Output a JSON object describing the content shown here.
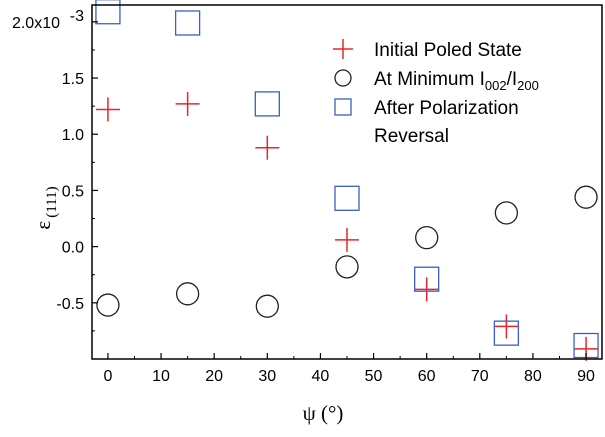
{
  "chart_data": {
    "type": "scatter",
    "title": "",
    "xlabel": "ψ (°)",
    "ylabel_symbol": "ε",
    "ylabel_subscript": "(111)",
    "xlim": [
      -3,
      93
    ],
    "ylim": [
      -0.001,
      0.00215
    ],
    "x_ticks": [
      0,
      10,
      20,
      30,
      40,
      50,
      60,
      70,
      80,
      90
    ],
    "y_ticks": [
      {
        "value": 0.002,
        "label": "2.0x10",
        "exponent": "-3"
      },
      {
        "value": 0.0015,
        "label": "1.5"
      },
      {
        "value": 0.001,
        "label": "1.0"
      },
      {
        "value": 0.0005,
        "label": "0.5"
      },
      {
        "value": 0.0,
        "label": "0.0"
      },
      {
        "value": -0.0005,
        "label": "-0.5"
      }
    ],
    "grid": false,
    "legend_position": "top-right",
    "series": [
      {
        "name": "Initial Poled State",
        "marker": "plus",
        "color": "#e8262a",
        "x": [
          0,
          15,
          30,
          45,
          60,
          75,
          90
        ],
        "y": [
          0.00122,
          0.00127,
          0.00088,
          6e-05,
          -0.00038,
          -0.00071,
          -0.00091
        ]
      },
      {
        "name": "At Minimum I002/I200",
        "marker": "circle",
        "color": "#231f20",
        "x": [
          0,
          15,
          30,
          45,
          60,
          75,
          90
        ],
        "y": [
          -0.00052,
          -0.00042,
          -0.00053,
          -0.00018,
          8e-05,
          0.0003,
          0.00044
        ]
      },
      {
        "name": "After Polarization Reversal",
        "marker": "square",
        "color": "#3b5fc4",
        "x": [
          0,
          15,
          30,
          45,
          60,
          75,
          90
        ],
        "y": [
          0.00209,
          0.00199,
          0.00127,
          0.00043,
          -0.00029,
          -0.00077,
          -0.00088
        ]
      }
    ]
  },
  "legend": {
    "initial": "Initial Poled State",
    "minimum_prefix": "At Minimum I",
    "minimum_sub1": "002",
    "minimum_mid": "/I",
    "minimum_sub2": "200",
    "reversal_line1": "After Polarization",
    "reversal_line2": "Reversal"
  }
}
